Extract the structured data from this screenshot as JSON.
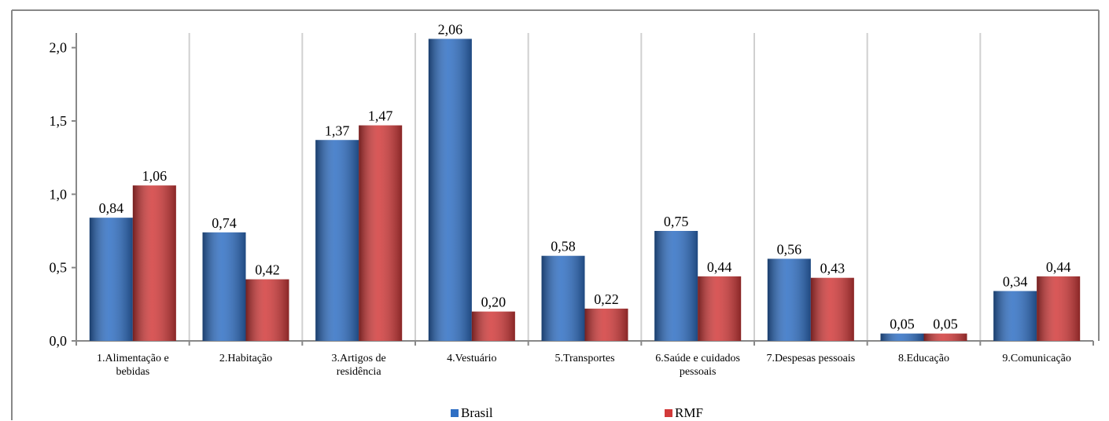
{
  "chart_data": {
    "type": "bar",
    "categories": [
      "1.Alimentação e bebidas",
      "2.Habitação",
      "3.Artigos de residência",
      "4.Vestuário",
      "5.Transportes",
      "6.Saúde e cuidados pessoais",
      "7.Despesas pessoais",
      "8.Educação",
      "9.Comunicação"
    ],
    "series": [
      {
        "name": "Brasil",
        "color": "#2f6fc4",
        "values": [
          0.84,
          0.74,
          1.37,
          2.06,
          0.58,
          0.75,
          0.56,
          0.05,
          0.34
        ],
        "value_labels": [
          "0,84",
          "0,74",
          "1,37",
          "2,06",
          "0,58",
          "0,75",
          "0,56",
          "0,05",
          "0,34"
        ]
      },
      {
        "name": "RMF",
        "color": "#d23a3a",
        "values": [
          1.06,
          0.42,
          1.47,
          0.2,
          0.22,
          0.44,
          0.43,
          0.05,
          0.44
        ],
        "value_labels": [
          "1,06",
          "0,42",
          "1,47",
          "0,20",
          "0,22",
          "0,44",
          "0,43",
          "0,05",
          "0,44"
        ]
      }
    ],
    "ylim": [
      0,
      2.1
    ],
    "yticks": [
      {
        "value": 0,
        "label": "0,0"
      },
      {
        "value": 0.5,
        "label": "0,5"
      },
      {
        "value": 1.0,
        "label": "1,0"
      },
      {
        "value": 1.5,
        "label": "1,5"
      },
      {
        "value": 2.0,
        "label": "2,0"
      }
    ],
    "grid": true,
    "legend": "bottom"
  }
}
